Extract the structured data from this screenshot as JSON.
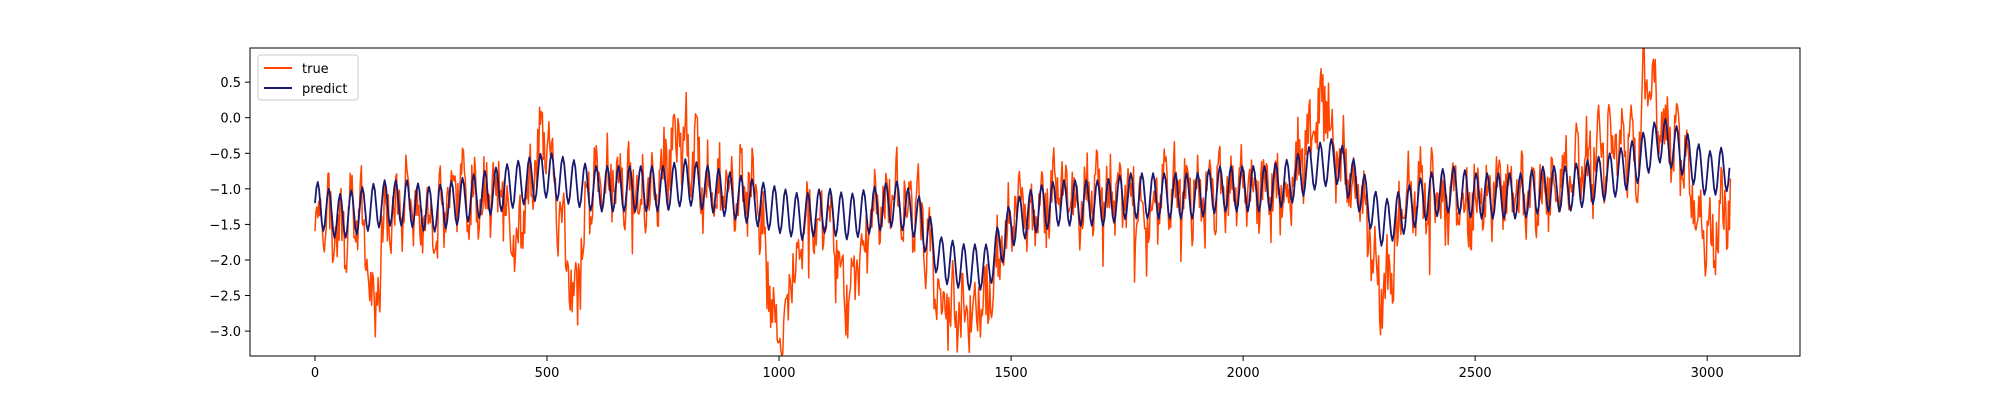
{
  "chart_data": {
    "type": "line",
    "title": "",
    "xlabel": "",
    "ylabel": "",
    "xlim": [
      -140,
      3200
    ],
    "ylim": [
      -3.35,
      0.98
    ],
    "x_ticks": [
      0,
      500,
      1000,
      1500,
      2000,
      2500,
      3000
    ],
    "y_ticks": [
      -3.0,
      -2.5,
      -2.0,
      -1.5,
      -1.0,
      -0.5,
      0.0,
      0.5
    ],
    "x_tick_labels": [
      "0",
      "500",
      "1000",
      "1500",
      "2000",
      "2500",
      "3000"
    ],
    "y_tick_labels": [
      "−3.0",
      "−2.5",
      "−2.0",
      "−1.5",
      "−1.0",
      "−0.5",
      "0.0",
      "0.5"
    ],
    "grid": false,
    "legend_position": "upper-left",
    "series": [
      {
        "name": "true",
        "color": "#ff4500",
        "x": [
          0,
          50,
          100,
          130,
          150,
          200,
          250,
          300,
          350,
          400,
          430,
          480,
          500,
          560,
          590,
          650,
          700,
          750,
          790,
          850,
          900,
          950,
          1000,
          1050,
          1100,
          1150,
          1200,
          1250,
          1300,
          1350,
          1400,
          1450,
          1500,
          1550,
          1600,
          1650,
          1700,
          1750,
          1800,
          1850,
          1900,
          1950,
          2000,
          2050,
          2100,
          2150,
          2180,
          2200,
          2250,
          2300,
          2350,
          2400,
          2450,
          2500,
          2550,
          2600,
          2650,
          2700,
          2750,
          2800,
          2850,
          2870,
          2900,
          2950,
          3000,
          3050
        ],
        "values": [
          -1.2,
          -1.6,
          -1.3,
          -2.8,
          -1.4,
          -1.2,
          -1.5,
          -1.1,
          -1.2,
          -1.0,
          -1.8,
          -0.6,
          -0.3,
          -2.7,
          -1.0,
          -0.8,
          -1.1,
          -0.8,
          -0.2,
          -1.0,
          -1.0,
          -1.1,
          -3.2,
          -1.5,
          -1.3,
          -2.6,
          -1.4,
          -1.1,
          -1.3,
          -2.6,
          -2.7,
          -2.6,
          -1.3,
          -1.3,
          -1.0,
          -1.2,
          -1.1,
          -1.1,
          -1.2,
          -1.0,
          -1.2,
          -1.0,
          -0.9,
          -1.1,
          -1.0,
          -0.2,
          0.3,
          -0.5,
          -1.0,
          -2.6,
          -1.1,
          -1.1,
          -1.2,
          -1.2,
          -1.0,
          -1.1,
          -1.0,
          -0.9,
          -0.6,
          -0.4,
          -0.5,
          0.8,
          -0.1,
          -0.6,
          -1.7,
          -1.2
        ]
      },
      {
        "name": "predict",
        "color": "#191970",
        "x": [
          0,
          50,
          100,
          150,
          200,
          250,
          300,
          350,
          400,
          450,
          500,
          550,
          600,
          650,
          700,
          750,
          800,
          850,
          900,
          950,
          1000,
          1050,
          1100,
          1150,
          1200,
          1250,
          1300,
          1350,
          1400,
          1450,
          1500,
          1550,
          1600,
          1650,
          1700,
          1750,
          1800,
          1850,
          1900,
          1950,
          2000,
          2050,
          2100,
          2150,
          2200,
          2250,
          2300,
          2350,
          2400,
          2450,
          2500,
          2550,
          2600,
          2650,
          2700,
          2750,
          2800,
          2850,
          2900,
          2950,
          3000,
          3050
        ],
        "values": [
          -1.2,
          -1.4,
          -1.3,
          -1.2,
          -1.2,
          -1.3,
          -1.2,
          -1.1,
          -1.0,
          -0.9,
          -0.8,
          -0.9,
          -1.0,
          -1.0,
          -1.0,
          -1.0,
          -0.9,
          -1.0,
          -1.1,
          -1.2,
          -1.3,
          -1.4,
          -1.3,
          -1.4,
          -1.3,
          -1.2,
          -1.4,
          -2.0,
          -2.1,
          -2.1,
          -1.5,
          -1.3,
          -1.2,
          -1.2,
          -1.2,
          -1.1,
          -1.1,
          -1.1,
          -1.1,
          -1.0,
          -1.0,
          -1.0,
          -0.9,
          -0.7,
          -0.6,
          -1.0,
          -1.5,
          -1.3,
          -1.1,
          -1.0,
          -1.1,
          -1.1,
          -1.1,
          -1.0,
          -1.0,
          -0.9,
          -0.8,
          -0.6,
          -0.3,
          -0.5,
          -0.8,
          -0.7
        ]
      }
    ]
  }
}
